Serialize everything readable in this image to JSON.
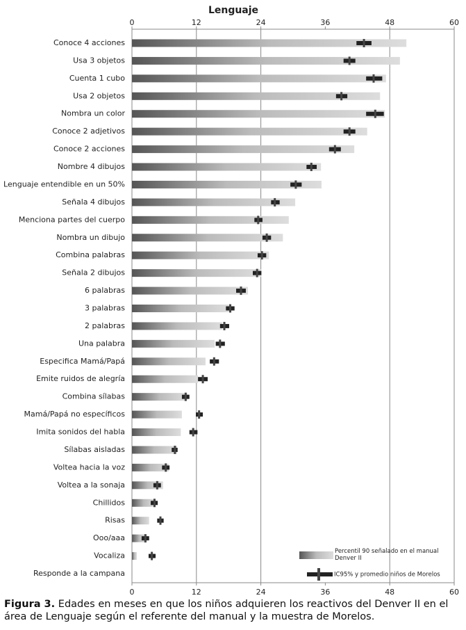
{
  "chart_data": {
    "type": "bar",
    "orientation": "horizontal",
    "title": "Lenguaje",
    "categories": [
      "Conoce 4 acciones",
      "Usa 3 objetos",
      "Cuenta 1 cubo",
      "Usa 2 objetos",
      "Nombra un color",
      "Conoce 2 adjetivos",
      "Conoce 2 acciones",
      "Nombre 4 dibujos",
      "Lenguaje entendible en un 50%",
      "Señala 4 dibujos",
      "Menciona partes del cuerpo",
      "Nombra un dibujo",
      "Combina palabras",
      "Señala 2 dibujos",
      "6 palabras",
      "3 palabras",
      "2 palabras",
      "Una palabra",
      "Especifica Mamá/Papá",
      "Emite ruidos de alegría",
      "Combina sílabas",
      "Mamá/Papá no específicos",
      "Imita sonidos del habla",
      "Sílabas aisladas",
      "Voltea hacia la voz",
      "Voltea a la sonaja",
      "Chillidos",
      "Risas",
      "Ooo/aaa",
      "Vocaliza",
      "Responde a la campana"
    ],
    "series": [
      {
        "name": "Percentil 90 señalado en el manual Denver II",
        "color": "#555555",
        "values": [
          51.1,
          49.9,
          47.3,
          46.2,
          47.1,
          43.8,
          41.4,
          35.2,
          35.3,
          30.4,
          29.2,
          28.1,
          25.5,
          24.1,
          21.6,
          18.1,
          16.8,
          15.4,
          13.7,
          12.3,
          10.3,
          9.3,
          9.1,
          8.4,
          6.9,
          5.8,
          4.4,
          3.2,
          2.8,
          0.9,
          0.1
        ]
      },
      {
        "name": "IC95% y promedio niños de Morelos",
        "color": "#222222",
        "values": [
          43.2,
          40.5,
          45,
          39,
          45.3,
          40.5,
          37.8,
          33.4,
          30.5,
          26.6,
          23.5,
          25.1,
          24.2,
          23.3,
          20.3,
          18.3,
          17.2,
          16.4,
          15.3,
          13.2,
          10,
          12.5,
          11.4,
          8,
          6.3,
          4.7,
          4.2,
          5.3,
          2.5,
          3.7,
          null
        ],
        "low": [
          41.8,
          39.4,
          43.6,
          38,
          43.6,
          39.4,
          36.7,
          32.5,
          29.5,
          25.9,
          22.8,
          24.3,
          23.4,
          22.5,
          19.4,
          17.5,
          16.4,
          15.6,
          14.5,
          12.3,
          9.3,
          11.9,
          10.7,
          7.4,
          5.6,
          4,
          3.5,
          4.7,
          1.8,
          3.1,
          null
        ],
        "high": [
          44.6,
          41.6,
          46.6,
          40.1,
          46.9,
          41.6,
          38.9,
          34.4,
          31.6,
          27.5,
          24.3,
          25.9,
          25,
          24.1,
          21.2,
          19.1,
          18.1,
          17.3,
          16.2,
          14.1,
          10.7,
          13.2,
          12.2,
          8.5,
          7,
          5.4,
          4.8,
          5.9,
          3.2,
          4.4,
          null
        ]
      }
    ],
    "xlim": [
      0,
      60
    ],
    "xticks": [
      0,
      12,
      24,
      36,
      48,
      60
    ],
    "gridlines": [
      12,
      24,
      48
    ]
  },
  "caption": {
    "label": "Figura 3.",
    "text": "Edades en meses en que los niños adquieren los reactivos del Denver II en el área de Lenguaje según el referente del manual y la muestra de Morelos."
  }
}
